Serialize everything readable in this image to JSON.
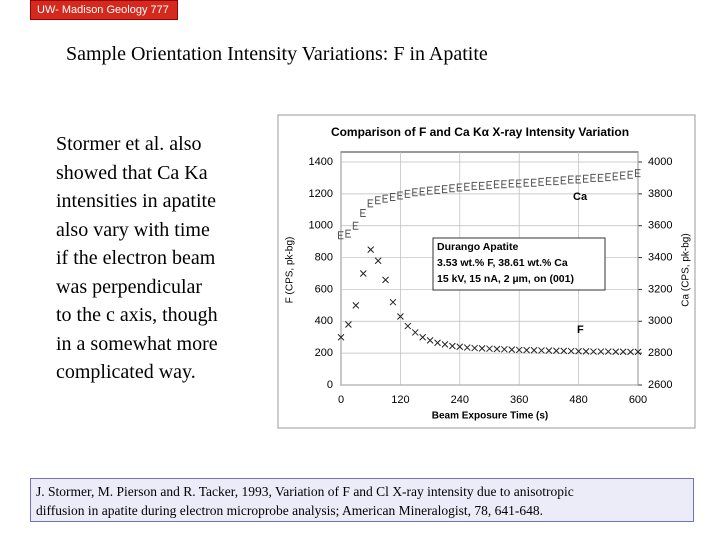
{
  "badge": "UW- Madison Geology 777",
  "title": "Sample Orientation Intensity Variations: F in Apatite",
  "body": [
    "Stormer et al. also",
    "showed that Ca Ka",
    "intensities in apatite",
    "also vary with time",
    "if the electron beam",
    "was perpendicular",
    "to the c axis, though",
    "in a somewhat more",
    "complicated way."
  ],
  "citation": [
    "J. Stormer, M. Pierson and R. Tacker, 1993, Variation of F and Cl X-ray intensity due to anisotropic",
    "diffusion in apatite during electron microprobe analysis; American Mineralogist, 78, 641-648."
  ],
  "chart_data": {
    "type": "scatter",
    "title": "Comparison of F  and Ca Kα X-ray Intensity Variation",
    "xlabel": "Beam Exposure Time (s)",
    "ylabel": "F (CPS, pk-bg)",
    "y2label": "Ca (CPS, pk-bg)",
    "annotation": [
      "Durango Apatite",
      "3.53  wt.% F,  38.61 wt.% Ca",
      "15 kV, 15 nA, 2 µm, on (001)"
    ],
    "series_labels": [
      "Ca",
      "F"
    ],
    "xlim": [
      0,
      600
    ],
    "xticks": [
      0,
      120,
      240,
      360,
      480,
      600
    ],
    "ylim": [
      0,
      1400
    ],
    "yticks": [
      0,
      200,
      400,
      600,
      800,
      1000,
      1200,
      1400
    ],
    "y2lim": [
      2600,
      4000
    ],
    "y2ticks": [
      2600,
      2800,
      3000,
      3200,
      3400,
      3600,
      3800,
      4000
    ],
    "grid": true,
    "x": [
      0,
      15,
      30,
      45,
      60,
      75,
      90,
      105,
      120,
      135,
      150,
      165,
      180,
      195,
      210,
      225,
      240,
      255,
      270,
      285,
      300,
      315,
      330,
      345,
      360,
      375,
      390,
      405,
      420,
      435,
      450,
      465,
      480,
      495,
      510,
      525,
      540,
      555,
      570,
      585,
      600
    ],
    "series": [
      {
        "name": "F",
        "color": "#222222",
        "values": [
          300,
          380,
          500,
          700,
          850,
          780,
          660,
          520,
          430,
          370,
          330,
          300,
          280,
          265,
          255,
          245,
          240,
          235,
          232,
          230,
          228,
          226,
          224,
          222,
          220,
          219,
          218,
          217,
          216,
          215,
          214,
          213,
          212,
          211,
          210,
          210,
          210,
          209,
          209,
          208,
          208
        ]
      },
      {
        "name": "Ca",
        "color": "#555555",
        "axis": "y2",
        "values": [
          3540,
          3550,
          3600,
          3680,
          3740,
          3760,
          3770,
          3780,
          3790,
          3800,
          3810,
          3815,
          3820,
          3825,
          3830,
          3835,
          3840,
          3845,
          3850,
          3850,
          3855,
          3860,
          3860,
          3865,
          3865,
          3870,
          3870,
          3875,
          3880,
          3880,
          3885,
          3890,
          3890,
          3895,
          3900,
          3900,
          3905,
          3910,
          3915,
          3920,
          3930
        ]
      }
    ]
  }
}
